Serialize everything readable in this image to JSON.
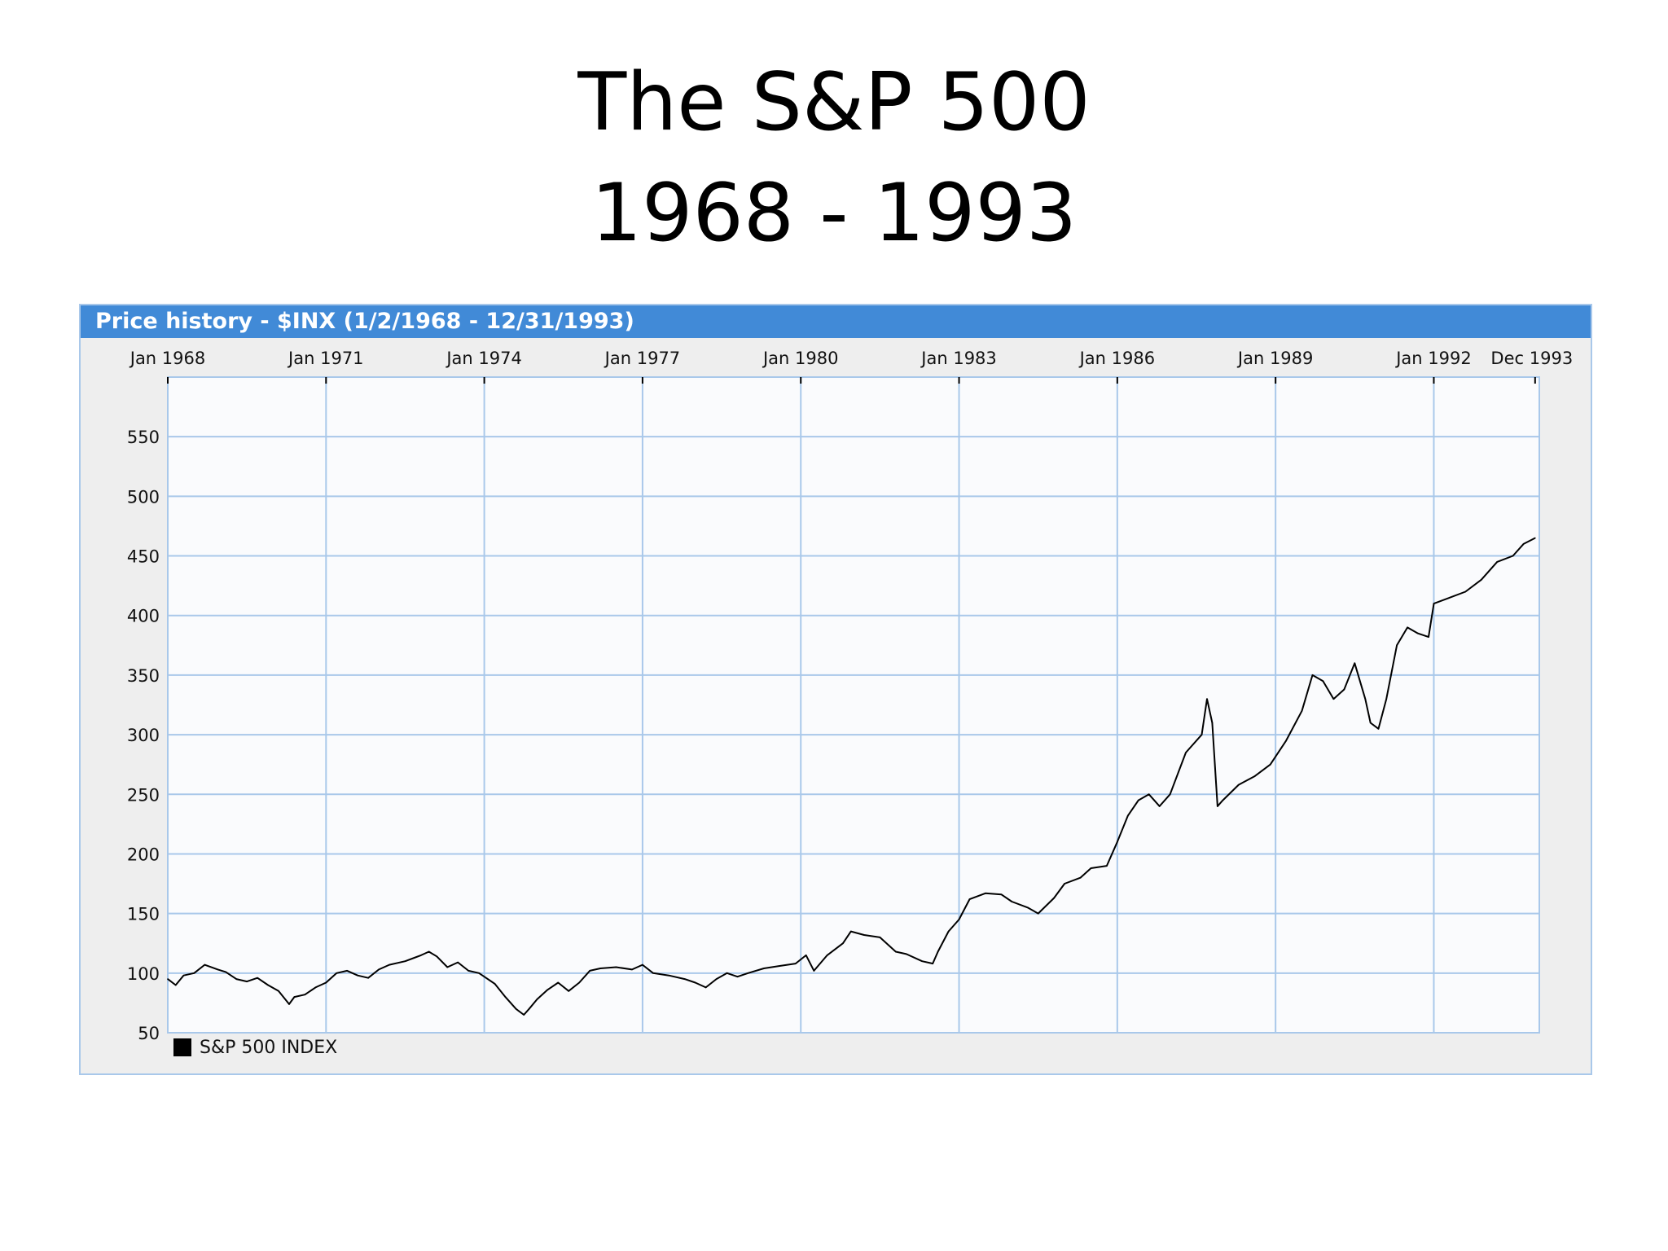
{
  "slide": {
    "title_line1": "The S&P 500",
    "title_line2": "1968 - 1993"
  },
  "widget": {
    "header": "Price history - $INX (1/2/1968 - 12/31/1993)"
  },
  "colors": {
    "header_bg": "#418ad7",
    "panel_bg": "#eeeeee",
    "plot_bg": "#fafbfd",
    "grid": "#a9c8ea",
    "line": "#000000"
  },
  "chart_data": {
    "type": "line",
    "title": "Price history - $INX (1/2/1968 - 12/31/1993)",
    "xlabel": "",
    "ylabel": "",
    "x_range": [
      1968.0,
      1994.0
    ],
    "ylim": [
      50,
      600
    ],
    "x_ticks": [
      {
        "x": 1968,
        "label": "Jan 1968"
      },
      {
        "x": 1971,
        "label": "Jan 1971"
      },
      {
        "x": 1974,
        "label": "Jan 1974"
      },
      {
        "x": 1977,
        "label": "Jan 1977"
      },
      {
        "x": 1980,
        "label": "Jan 1980"
      },
      {
        "x": 1983,
        "label": "Jan 1983"
      },
      {
        "x": 1986,
        "label": "Jan 1986"
      },
      {
        "x": 1989,
        "label": "Jan 1989"
      },
      {
        "x": 1992,
        "label": "Jan 1992"
      },
      {
        "x": 1993.92,
        "label": "Dec 1993"
      }
    ],
    "y_ticks": [
      50,
      100,
      150,
      200,
      250,
      300,
      350,
      400,
      450,
      500,
      550
    ],
    "grid": true,
    "legend_position": "bottom-left",
    "series": [
      {
        "name": "S&P 500 INDEX",
        "x": [
          1968.0,
          1968.15,
          1968.3,
          1968.5,
          1968.7,
          1968.95,
          1969.1,
          1969.3,
          1969.5,
          1969.7,
          1969.9,
          1970.1,
          1970.3,
          1970.4,
          1970.6,
          1970.8,
          1971.0,
          1971.2,
          1971.4,
          1971.6,
          1971.8,
          1972.0,
          1972.2,
          1972.5,
          1972.8,
          1972.95,
          1973.1,
          1973.3,
          1973.5,
          1973.7,
          1973.9,
          1974.0,
          1974.2,
          1974.4,
          1974.6,
          1974.75,
          1974.85,
          1975.0,
          1975.2,
          1975.4,
          1975.6,
          1975.8,
          1976.0,
          1976.2,
          1976.5,
          1976.8,
          1977.0,
          1977.2,
          1977.5,
          1977.8,
          1978.0,
          1978.2,
          1978.4,
          1978.6,
          1978.8,
          1979.0,
          1979.3,
          1979.6,
          1979.9,
          1980.1,
          1980.25,
          1980.5,
          1980.8,
          1980.95,
          1981.2,
          1981.5,
          1981.8,
          1982.0,
          1982.3,
          1982.5,
          1982.6,
          1982.8,
          1983.0,
          1983.2,
          1983.5,
          1983.8,
          1984.0,
          1984.3,
          1984.5,
          1984.8,
          1985.0,
          1985.3,
          1985.5,
          1985.8,
          1986.0,
          1986.2,
          1986.4,
          1986.6,
          1986.8,
          1987.0,
          1987.3,
          1987.6,
          1987.7,
          1987.8,
          1987.9,
          1988.0,
          1988.3,
          1988.6,
          1988.9,
          1989.2,
          1989.5,
          1989.7,
          1989.9,
          1990.1,
          1990.3,
          1990.5,
          1990.7,
          1990.8,
          1990.95,
          1991.1,
          1991.3,
          1991.5,
          1991.7,
          1991.9,
          1992.0,
          1992.3,
          1992.6,
          1992.9,
          1993.2,
          1993.5,
          1993.7,
          1993.92
        ],
        "values": [
          95,
          90,
          98,
          100,
          107,
          103,
          101,
          95,
          93,
          96,
          90,
          85,
          74,
          80,
          82,
          88,
          92,
          100,
          102,
          98,
          96,
          103,
          107,
          110,
          115,
          118,
          114,
          105,
          109,
          102,
          100,
          97,
          91,
          80,
          70,
          65,
          70,
          78,
          86,
          92,
          85,
          92,
          102,
          104,
          105,
          103,
          107,
          100,
          98,
          95,
          92,
          88,
          95,
          100,
          97,
          100,
          104,
          106,
          108,
          115,
          102,
          115,
          125,
          135,
          132,
          130,
          118,
          116,
          110,
          108,
          118,
          135,
          145,
          162,
          167,
          166,
          160,
          155,
          150,
          163,
          175,
          180,
          188,
          190,
          210,
          232,
          245,
          250,
          240,
          250,
          285,
          300,
          330,
          310,
          240,
          245,
          258,
          265,
          275,
          295,
          320,
          350,
          345,
          330,
          338,
          360,
          330,
          310,
          305,
          330,
          375,
          390,
          385,
          382,
          410,
          415,
          420,
          430,
          445,
          450,
          460,
          465
        ]
      }
    ]
  },
  "legend": {
    "label": "S&P 500 INDEX"
  }
}
